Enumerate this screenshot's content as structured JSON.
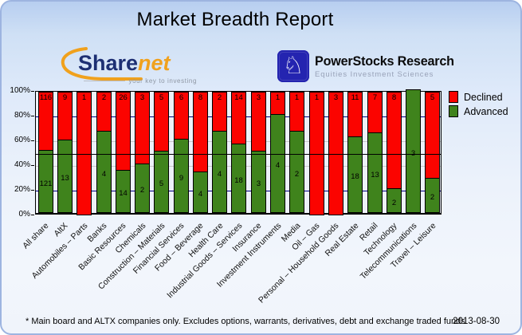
{
  "header": {
    "title": "Market Breadth Report"
  },
  "logos": {
    "sharenet": {
      "word_primary": "Share",
      "word_secondary": "net",
      "tagline": "your key to investing"
    },
    "powerstocks": {
      "title": "PowerStocks Research",
      "subtitle": "Equities Investment Sciences",
      "icon": "knight-icon",
      "icon_glyph": "♘",
      "square_color": "#2424b0"
    }
  },
  "chart_data": {
    "type": "bar",
    "stacked": true,
    "normalized_to": "100%",
    "title": "Market Breadth Report",
    "xlabel": "",
    "ylabel": "",
    "ylim": [
      0,
      100
    ],
    "y_ticks": [
      "0%",
      "20%",
      "40%",
      "60%",
      "80%",
      "100%"
    ],
    "legend_position": "top-right",
    "gridlines": {
      "navy_at": [
        20,
        80
      ],
      "gray_at": [
        40,
        60
      ],
      "black_mid_at": 50,
      "navy_color": "#000080",
      "gray_color": "#c9c9c9"
    },
    "plot_bg": "#edf1f9",
    "categories": [
      "All share",
      "AltX",
      "Automobiles – Parts",
      "Banks",
      "Basic Resources",
      "Chemicals",
      "Construction – Materials",
      "Financial Services",
      "Food – Beverage",
      "Health Care",
      "Industrial Goods – Services",
      "Insurance",
      "Investment Instruments",
      "Media",
      "Oil – Gas",
      "Personal – Household Goods",
      "Real Estate",
      "Retail",
      "Technology",
      "Telecommunications",
      "Travel – Leisure"
    ],
    "series": [
      {
        "name": "Declined",
        "color": "#fb0400",
        "values": [
          116,
          9,
          1,
          2,
          26,
          3,
          5,
          6,
          8,
          2,
          14,
          3,
          1,
          1,
          1,
          3,
          11,
          7,
          8,
          0,
          5
        ]
      },
      {
        "name": "Advanced",
        "color": "#3f831c",
        "values": [
          121,
          13,
          0,
          4,
          14,
          2,
          5,
          9,
          4,
          4,
          18,
          3,
          4,
          2,
          0,
          0,
          18,
          13,
          2,
          3,
          2
        ]
      }
    ]
  },
  "footer": {
    "note": "* Main board and ALTX companies only. Excludes options, warrants, derivatives, debt and exchange traded funds",
    "date": "2013-08-30"
  }
}
